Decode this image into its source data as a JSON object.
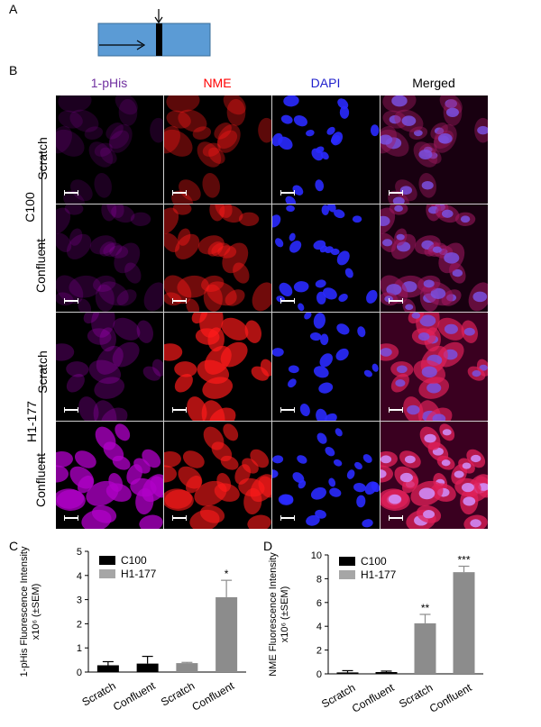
{
  "panel_a": {
    "letter": "A",
    "colors": {
      "box": "#5b9bd5",
      "band": "#000000"
    }
  },
  "panel_b": {
    "letter": "B",
    "columns": [
      {
        "label": "1-pHis",
        "color": "#7030a0"
      },
      {
        "label": "NME",
        "color": "#ff0000"
      },
      {
        "label": "DAPI",
        "color": "#1f1fcc"
      },
      {
        "label": "Merged",
        "color": "#000000"
      }
    ],
    "groups": [
      {
        "label": "C100",
        "rows": [
          "Scratch",
          "Confluent"
        ]
      },
      {
        "label": "H1-177",
        "rows": [
          "Scratch",
          "Confluent"
        ]
      }
    ],
    "tint_colors": {
      "phis": "#b000c8",
      "nme": "#ff1a1a",
      "dapi": "#2a2aff",
      "merged": "#d020d0"
    }
  },
  "panel_c": {
    "letter": "C",
    "chart_data": {
      "type": "bar",
      "ylabel_line1": "1-pHis Fluorescence Intensity",
      "ylabel_line2": "x10⁶ (±SEM)",
      "ylim": [
        0,
        5
      ],
      "yticks": [
        "0",
        "1",
        "2",
        "3",
        "4",
        "5"
      ],
      "categories": [
        "Scratch",
        "Confluent",
        "Scratch",
        "Confluent"
      ],
      "values": [
        0.28,
        0.35,
        0.37,
        3.1
      ],
      "errors": [
        0.15,
        0.3,
        0.03,
        0.7
      ],
      "bar_colors": [
        "#000000",
        "#000000",
        "#8c8c8c",
        "#8c8c8c"
      ],
      "annotations": [
        "",
        "",
        "",
        "*"
      ],
      "legend": [
        {
          "name": "C100",
          "color": "#000000"
        },
        {
          "name": "H1-177",
          "color": "#a6a6a6"
        }
      ]
    }
  },
  "panel_d": {
    "letter": "D",
    "chart_data": {
      "type": "bar",
      "ylabel_line1": "NME Fluorescence Intensity",
      "ylabel_line2": "x10⁶ (±SEM)",
      "ylim": [
        0,
        10
      ],
      "yticks": [
        "0",
        "2",
        "4",
        "6",
        "8",
        "10"
      ],
      "categories": [
        "Scratch",
        "Confluent",
        "Scratch",
        "Confluent"
      ],
      "values": [
        0.12,
        0.15,
        4.25,
        8.55
      ],
      "errors": [
        0.15,
        0.08,
        0.75,
        0.5
      ],
      "bar_colors": [
        "#000000",
        "#000000",
        "#8c8c8c",
        "#8c8c8c"
      ],
      "annotations": [
        "",
        "",
        "**",
        "***"
      ],
      "legend": [
        {
          "name": "C100",
          "color": "#000000"
        },
        {
          "name": "H1-177",
          "color": "#a6a6a6"
        }
      ]
    }
  }
}
